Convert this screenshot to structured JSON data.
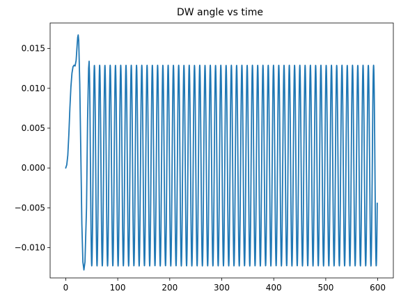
{
  "chart_data": {
    "type": "line",
    "title": "DW angle vs time",
    "xlabel": "",
    "ylabel": "",
    "xlim": [
      -30,
      630
    ],
    "ylim": [
      -0.0138,
      0.0182
    ],
    "x_ticks": [
      0,
      100,
      200,
      300,
      400,
      500,
      600
    ],
    "x_tick_labels": [
      "0",
      "100",
      "200",
      "300",
      "400",
      "500",
      "600"
    ],
    "y_ticks": [
      -0.01,
      -0.005,
      0.0,
      0.005,
      0.01,
      0.015
    ],
    "y_tick_labels": [
      "−0.010",
      "−0.005",
      "0.000",
      "0.005",
      "0.010",
      "0.015"
    ],
    "grid": false,
    "series": [
      {
        "color": "#1f77b4",
        "x_start": 0,
        "x_end": 600,
        "transient_points": [
          [
            0,
            0.0
          ],
          [
            2,
            0.0004
          ],
          [
            4,
            0.0016
          ],
          [
            6,
            0.0042
          ],
          [
            8,
            0.0075
          ],
          [
            10,
            0.0102
          ],
          [
            12,
            0.0119
          ],
          [
            14,
            0.0127
          ],
          [
            16,
            0.0129
          ],
          [
            18,
            0.0128
          ],
          [
            20,
            0.0135
          ],
          [
            22,
            0.0155
          ],
          [
            23,
            0.0164
          ],
          [
            24,
            0.0167
          ],
          [
            25,
            0.016
          ],
          [
            27,
            0.0105
          ],
          [
            29,
            0.002
          ],
          [
            31,
            -0.007
          ],
          [
            33,
            -0.0118
          ],
          [
            35,
            -0.0128
          ],
          [
            37,
            -0.0118
          ],
          [
            40,
            -0.005
          ],
          [
            42,
            0.006
          ],
          [
            44,
            0.0125
          ],
          [
            45,
            0.0134
          ]
        ],
        "steady_start": 45,
        "steady_start_phase": "peak",
        "steady_period": 10.13,
        "steady_max": 0.0129,
        "steady_min": -0.0123,
        "end_point": [
          599,
          -0.0046
        ]
      }
    ]
  }
}
